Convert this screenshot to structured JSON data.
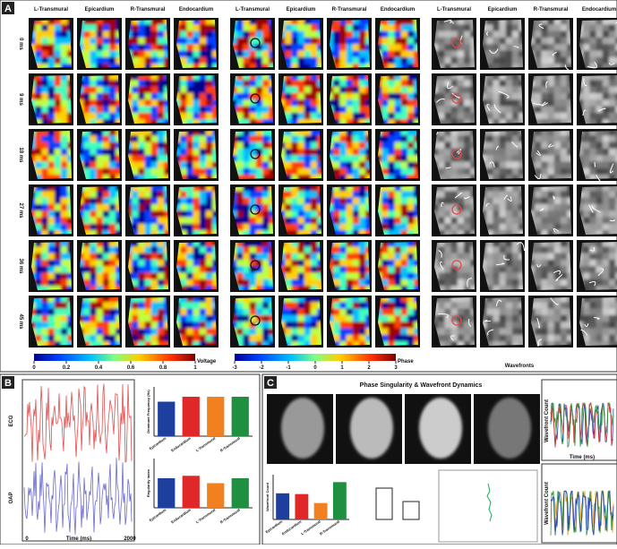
{
  "panel_a": {
    "label": "A",
    "columns": [
      "L-Transmural",
      "Epicardium",
      "R-Transmural",
      "Endocardium"
    ],
    "rows": [
      "0 ms",
      "9 ms",
      "18 ms",
      "27 ms",
      "36 ms",
      "45 ms"
    ],
    "voltage_bar": {
      "ticks": [
        0,
        0.2,
        0.4,
        0.6,
        0.8,
        1
      ],
      "label": "Voltage"
    },
    "phase_bar": {
      "ticks": [
        -3,
        -2,
        -1,
        0,
        1,
        2,
        3
      ],
      "label": "Phase"
    },
    "wavefront_label": "Wavefronts"
  },
  "panel_b": {
    "label": "B",
    "traces": [
      "ECG",
      "OAP"
    ],
    "xlabel": "Time (ms)",
    "xticks": [
      0,
      2000
    ],
    "df_chart": {
      "type": "bar",
      "ylabel": "Dominant Frequency (Hz)",
      "categories": [
        "Epicardium",
        "Endocardium",
        "L-Transmural",
        "R-Transmural"
      ],
      "values": [
        7,
        8,
        8,
        8
      ],
      "colors": [
        "#1f3f9f",
        "#e02828",
        "#f08020",
        "#1f9040"
      ],
      "ylim": [
        0,
        10
      ]
    },
    "ri_chart": {
      "type": "bar",
      "ylabel": "Regularity Index",
      "categories": [
        "Epicardium",
        "Endocardium",
        "L-Transmural",
        "R-Transmural"
      ],
      "values": [
        0.6,
        0.65,
        0.5,
        0.6
      ],
      "colors": [
        "#1f3f9f",
        "#e02828",
        "#f08020",
        "#1f9040"
      ],
      "ylim": [
        0,
        1
      ]
    }
  },
  "panel_c": {
    "label": "C",
    "title": "Phase Singularity & Wavefront Dynamics",
    "wf_chart": {
      "type": "bar",
      "ylabel": "Wavefront Count",
      "categories": [
        "Epicardium",
        "Endocardium",
        "L-Transmural",
        "R-Transmural"
      ],
      "values": [
        3.5,
        3.4,
        2.2,
        5
      ],
      "colors": [
        "#1f3f9f",
        "#e02828",
        "#f08020",
        "#1f9040"
      ],
      "ylim": [
        0,
        6
      ]
    },
    "right_top": {
      "ylabel": "Wavefront Count",
      "xlabel": "Time (ms)"
    },
    "right_bottom": {
      "ylabel": "Wavefront Count"
    }
  }
}
